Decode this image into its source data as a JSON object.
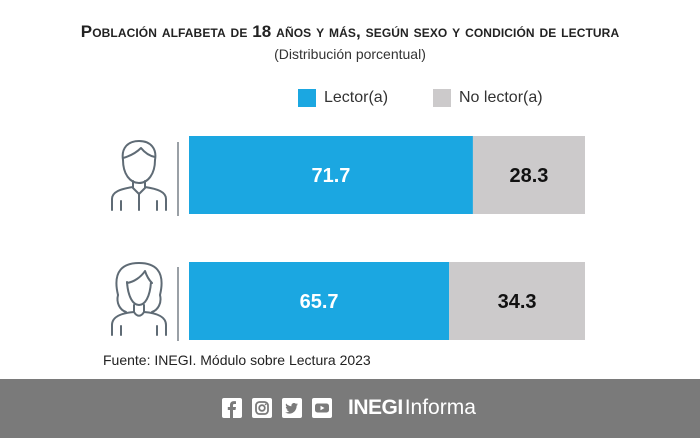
{
  "chart_data": {
    "type": "bar",
    "stacked": true,
    "orientation": "horizontal",
    "title": "Población alfabeta de 18 años y más, según sexo y condición de lectura",
    "subtitle": "(Distribución porcentual)",
    "categories": [
      "Hombres",
      "Mujeres"
    ],
    "category_icons": [
      "man-icon",
      "woman-icon"
    ],
    "series": [
      {
        "name": "Lector(a)",
        "color": "#1ba7e1",
        "values": [
          71.7,
          65.7
        ]
      },
      {
        "name": "No lector(a)",
        "color": "#cccacb",
        "values": [
          28.3,
          34.3
        ]
      }
    ],
    "xlim": [
      0,
      100
    ],
    "legend_position": "top"
  },
  "source": "Fuente: INEGI. Módulo sobre Lectura 2023",
  "footer": {
    "brand_bold": "INEGI",
    "brand_light": "Informa",
    "social_icons": [
      "facebook-icon",
      "instagram-icon",
      "twitter-icon",
      "youtube-icon"
    ],
    "background": "#7a7a7a"
  }
}
